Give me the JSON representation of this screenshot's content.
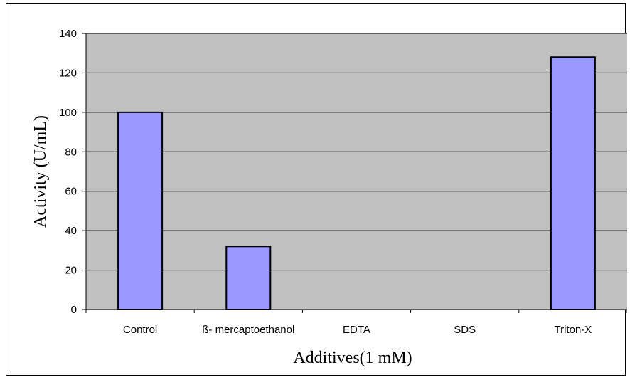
{
  "chart_data": {
    "type": "bar",
    "title": "",
    "xlabel": "Additives(1 mM)",
    "ylabel": "Activity (U/mL)",
    "categories": [
      "Control",
      "ß- mercaptoethanol",
      "EDTA",
      "SDS",
      "Triton-X"
    ],
    "values": [
      100,
      32,
      0,
      0,
      128
    ],
    "ylim": [
      0,
      140
    ],
    "yticks": [
      "0",
      "20",
      "40",
      "60",
      "80",
      "100",
      "120",
      "140"
    ],
    "grid": true,
    "legend": "none",
    "colors": {
      "bar_fill": "#9999ff",
      "plot_background": "#c0c0c0",
      "grid": "#000000"
    }
  }
}
